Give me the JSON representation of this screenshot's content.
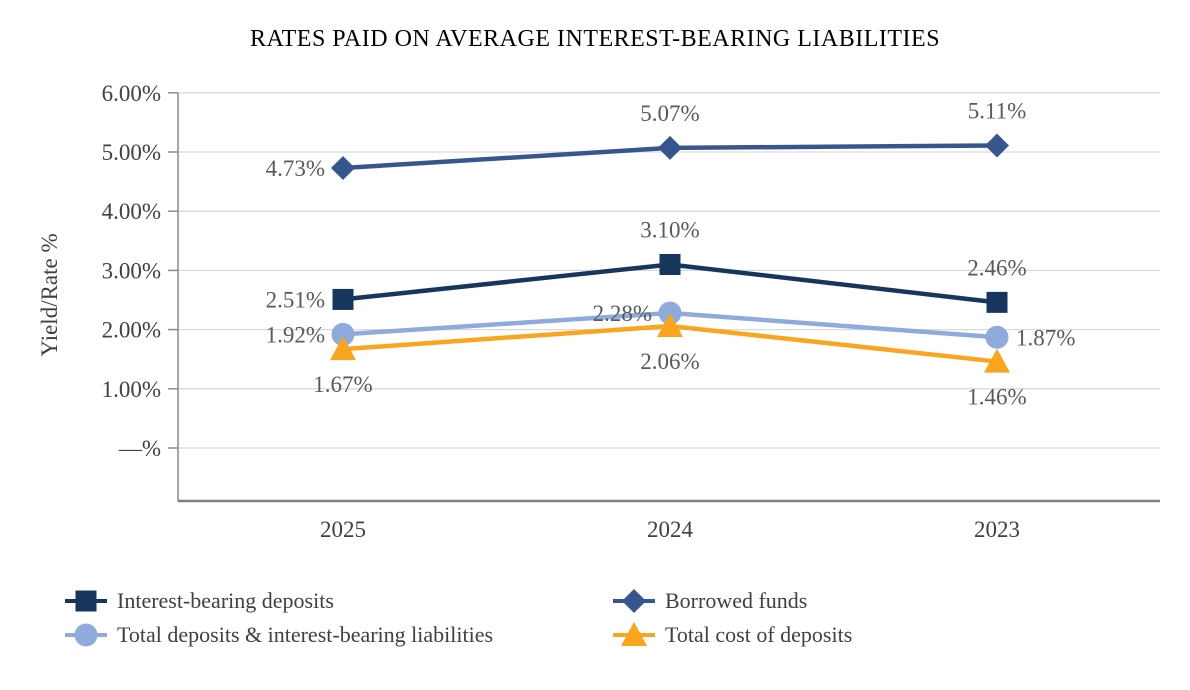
{
  "chart_data": {
    "type": "line",
    "title": "RATES PAID ON AVERAGE INTEREST-BEARING LIABILITIES",
    "ylabel": "Yield/Rate %",
    "categories": [
      "2025",
      "2024",
      "2023"
    ],
    "y_ticks": [
      {
        "label": "6.00%",
        "value": 6
      },
      {
        "label": "5.00%",
        "value": 5
      },
      {
        "label": "4.00%",
        "value": 4
      },
      {
        "label": "3.00%",
        "value": 3
      },
      {
        "label": "2.00%",
        "value": 2
      },
      {
        "label": "1.00%",
        "value": 1
      },
      {
        "label": "—%",
        "value": 0
      }
    ],
    "ylim": [
      -0.9,
      6
    ],
    "grid": true,
    "legend_position": "bottom",
    "series": [
      {
        "name": "Interest-bearing deposits",
        "marker": "square",
        "color": "#17365D",
        "values": [
          2.51,
          3.1,
          2.46
        ],
        "labels": [
          "2.51%",
          "3.10%",
          "2.46%"
        ],
        "label_positions": [
          "left",
          "above",
          "above"
        ]
      },
      {
        "name": "Borrowed funds",
        "marker": "diamond",
        "color": "#36578E",
        "values": [
          4.73,
          5.07,
          5.11
        ],
        "labels": [
          "4.73%",
          "5.07%",
          "5.11%"
        ],
        "label_positions": [
          "left",
          "above",
          "above"
        ]
      },
      {
        "name": "Total deposits & interest-bearing liabilities",
        "marker": "circle",
        "color": "#8FAADC",
        "values": [
          1.92,
          2.28,
          1.87
        ],
        "labels": [
          "1.92%",
          "2.28%",
          "1.87%"
        ],
        "label_positions": [
          "left",
          "left",
          "right"
        ]
      },
      {
        "name": "Total cost of deposits",
        "marker": "triangle",
        "color": "#F9A51D",
        "values": [
          1.67,
          2.06,
          1.46
        ],
        "labels": [
          "1.67%",
          "2.06%",
          "1.46%"
        ],
        "label_positions": [
          "below",
          "below",
          "below"
        ]
      }
    ],
    "legend_order_by_column": [
      [
        0,
        2
      ],
      [
        1,
        3
      ]
    ],
    "colors": {
      "gridline": "#D9D9D9",
      "axis_line": "#8C8C8C",
      "bottom_axis_line": "#808080",
      "tick_text": "#404040",
      "data_label_text": "#595959",
      "title_text": "#000000"
    }
  }
}
